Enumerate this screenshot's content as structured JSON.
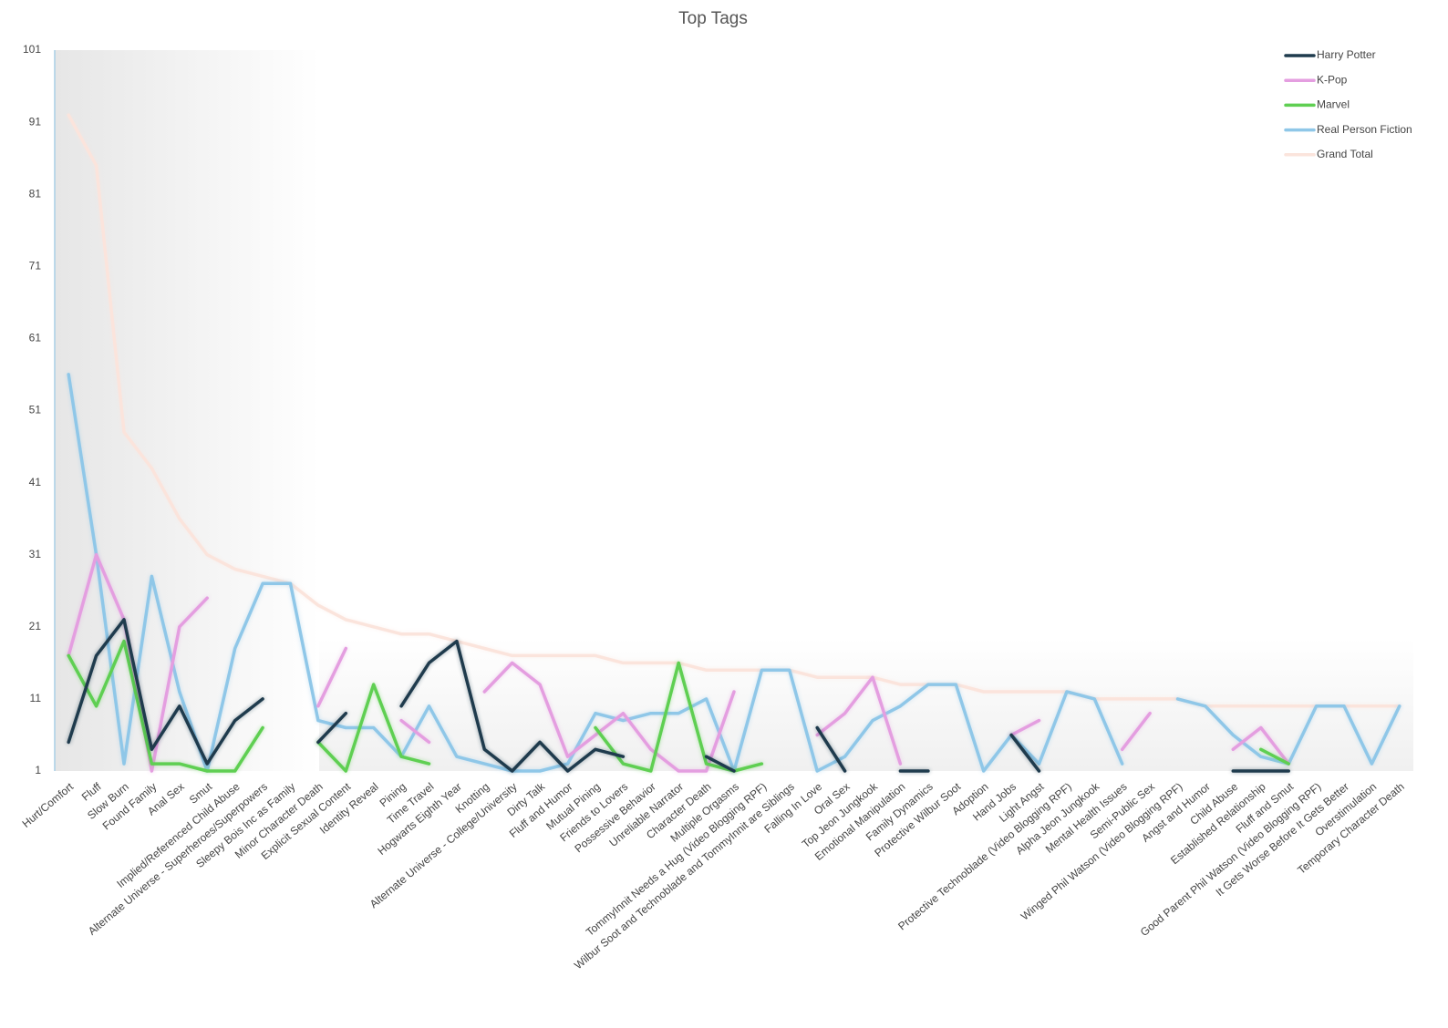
{
  "chart_data": {
    "type": "line",
    "title": "Top Tags",
    "categories": [
      "Hurt/Comfort",
      "Fluff",
      "Slow Burn",
      "Found Family",
      "Anal Sex",
      "Smut",
      "Implied/Referenced Child Abuse",
      "Alternate Universe - Superheroes/Superpowers",
      "Sleepy Bois Inc as Family",
      "Minor Character Death",
      "Explicit Sexual Content",
      "Identity Reveal",
      "Pining",
      "Time Travel",
      "Hogwarts Eighth Year",
      "Knotting",
      "Alternate Universe - College/University",
      "Dirty Talk",
      "Fluff and Humor",
      "Mutual Pining",
      "Friends to Lovers",
      "Possessive Behavior",
      "Unreliable Narrator",
      "Character Death",
      "Multiple Orgasms",
      "TommyInnit Needs a Hug (Video Blogging RPF)",
      "Wilbur Soot and Technoblade and TommyInnit are Siblings",
      "Falling In Love",
      "Oral Sex",
      "Top Jeon Jungkook",
      "Emotional Manipulation",
      "Family Dynamics",
      "Protective Wilbur Soot",
      "Adoption",
      "Hand Jobs",
      "Light Angst",
      "Protective Technoblade (Video Blogging RPF)",
      "Alpha Jeon Jungkook",
      "Mental Health Issues",
      "Semi-Public Sex",
      "Winged Phil Watson (Video Blogging RPF)",
      "Angst and Humor",
      "Child Abuse",
      "Established Relationship",
      "Fluff and Smut",
      "Good Parent Phil Watson (Video Blogging RPF)",
      "It Gets Worse Before It Gets Better",
      "Overstimulation",
      "Temporary Character Death"
    ],
    "series": [
      {
        "name": "Harry Potter",
        "color": "#1f3b4d",
        "values": [
          5,
          17,
          22,
          4,
          10,
          2,
          8,
          11,
          null,
          5,
          9,
          null,
          10,
          16,
          19,
          4,
          1,
          5,
          1,
          4,
          3,
          null,
          null,
          3,
          1,
          null,
          null,
          7,
          1,
          null,
          1,
          1,
          null,
          null,
          6,
          1,
          null,
          null,
          null,
          5,
          null,
          null,
          1,
          1,
          1,
          null,
          null,
          null,
          null
        ]
      },
      {
        "name": "K-Pop",
        "color": "#e49ee0",
        "values": [
          17,
          31,
          22,
          1,
          21,
          25,
          null,
          null,
          null,
          10,
          18,
          null,
          8,
          5,
          null,
          12,
          16,
          13,
          3,
          6,
          9,
          4,
          1,
          1,
          12,
          null,
          null,
          6,
          9,
          14,
          2,
          null,
          null,
          null,
          6,
          8,
          null,
          null,
          4,
          9,
          null,
          null,
          4,
          7,
          2,
          null,
          null,
          9,
          null
        ]
      },
      {
        "name": "Marvel",
        "color": "#5fcf52",
        "values": [
          17,
          10,
          19,
          2,
          2,
          1,
          1,
          7,
          null,
          5,
          1,
          13,
          3,
          2,
          null,
          null,
          12,
          null,
          null,
          7,
          2,
          1,
          16,
          2,
          1,
          2,
          null,
          null,
          3,
          null,
          null,
          null,
          null,
          null,
          null,
          5,
          null,
          null,
          2,
          null,
          null,
          2,
          null,
          4,
          2,
          null,
          null,
          null,
          null
        ]
      },
      {
        "name": "Real Person Fiction",
        "color": "#8fc7e8",
        "values": [
          56,
          31,
          2,
          28,
          12,
          1,
          18,
          27,
          27,
          8,
          7,
          7,
          3,
          10,
          3,
          2,
          1,
          1,
          2,
          9,
          8,
          9,
          9,
          11,
          1,
          15,
          15,
          1,
          3,
          8,
          10,
          13,
          13,
          1,
          6,
          2,
          12,
          11,
          2,
          null,
          11,
          10,
          6,
          3,
          2,
          10,
          10,
          2,
          10
        ]
      },
      {
        "name": "Grand Total",
        "color": "#fbe4dc",
        "values": [
          92,
          85,
          48,
          43,
          36,
          31,
          29,
          28,
          27,
          24,
          22,
          21,
          20,
          20,
          19,
          18,
          17,
          17,
          17,
          17,
          16,
          16,
          16,
          15,
          15,
          15,
          15,
          14,
          14,
          14,
          13,
          13,
          13,
          12,
          12,
          12,
          12,
          11,
          11,
          11,
          11,
          10,
          10,
          10,
          10,
          10,
          10,
          10,
          10
        ]
      }
    ],
    "ylim": [
      1,
      101
    ],
    "yticks": [
      1,
      11,
      21,
      31,
      41,
      51,
      61,
      71,
      81,
      91,
      101
    ],
    "legend": "top-right"
  }
}
